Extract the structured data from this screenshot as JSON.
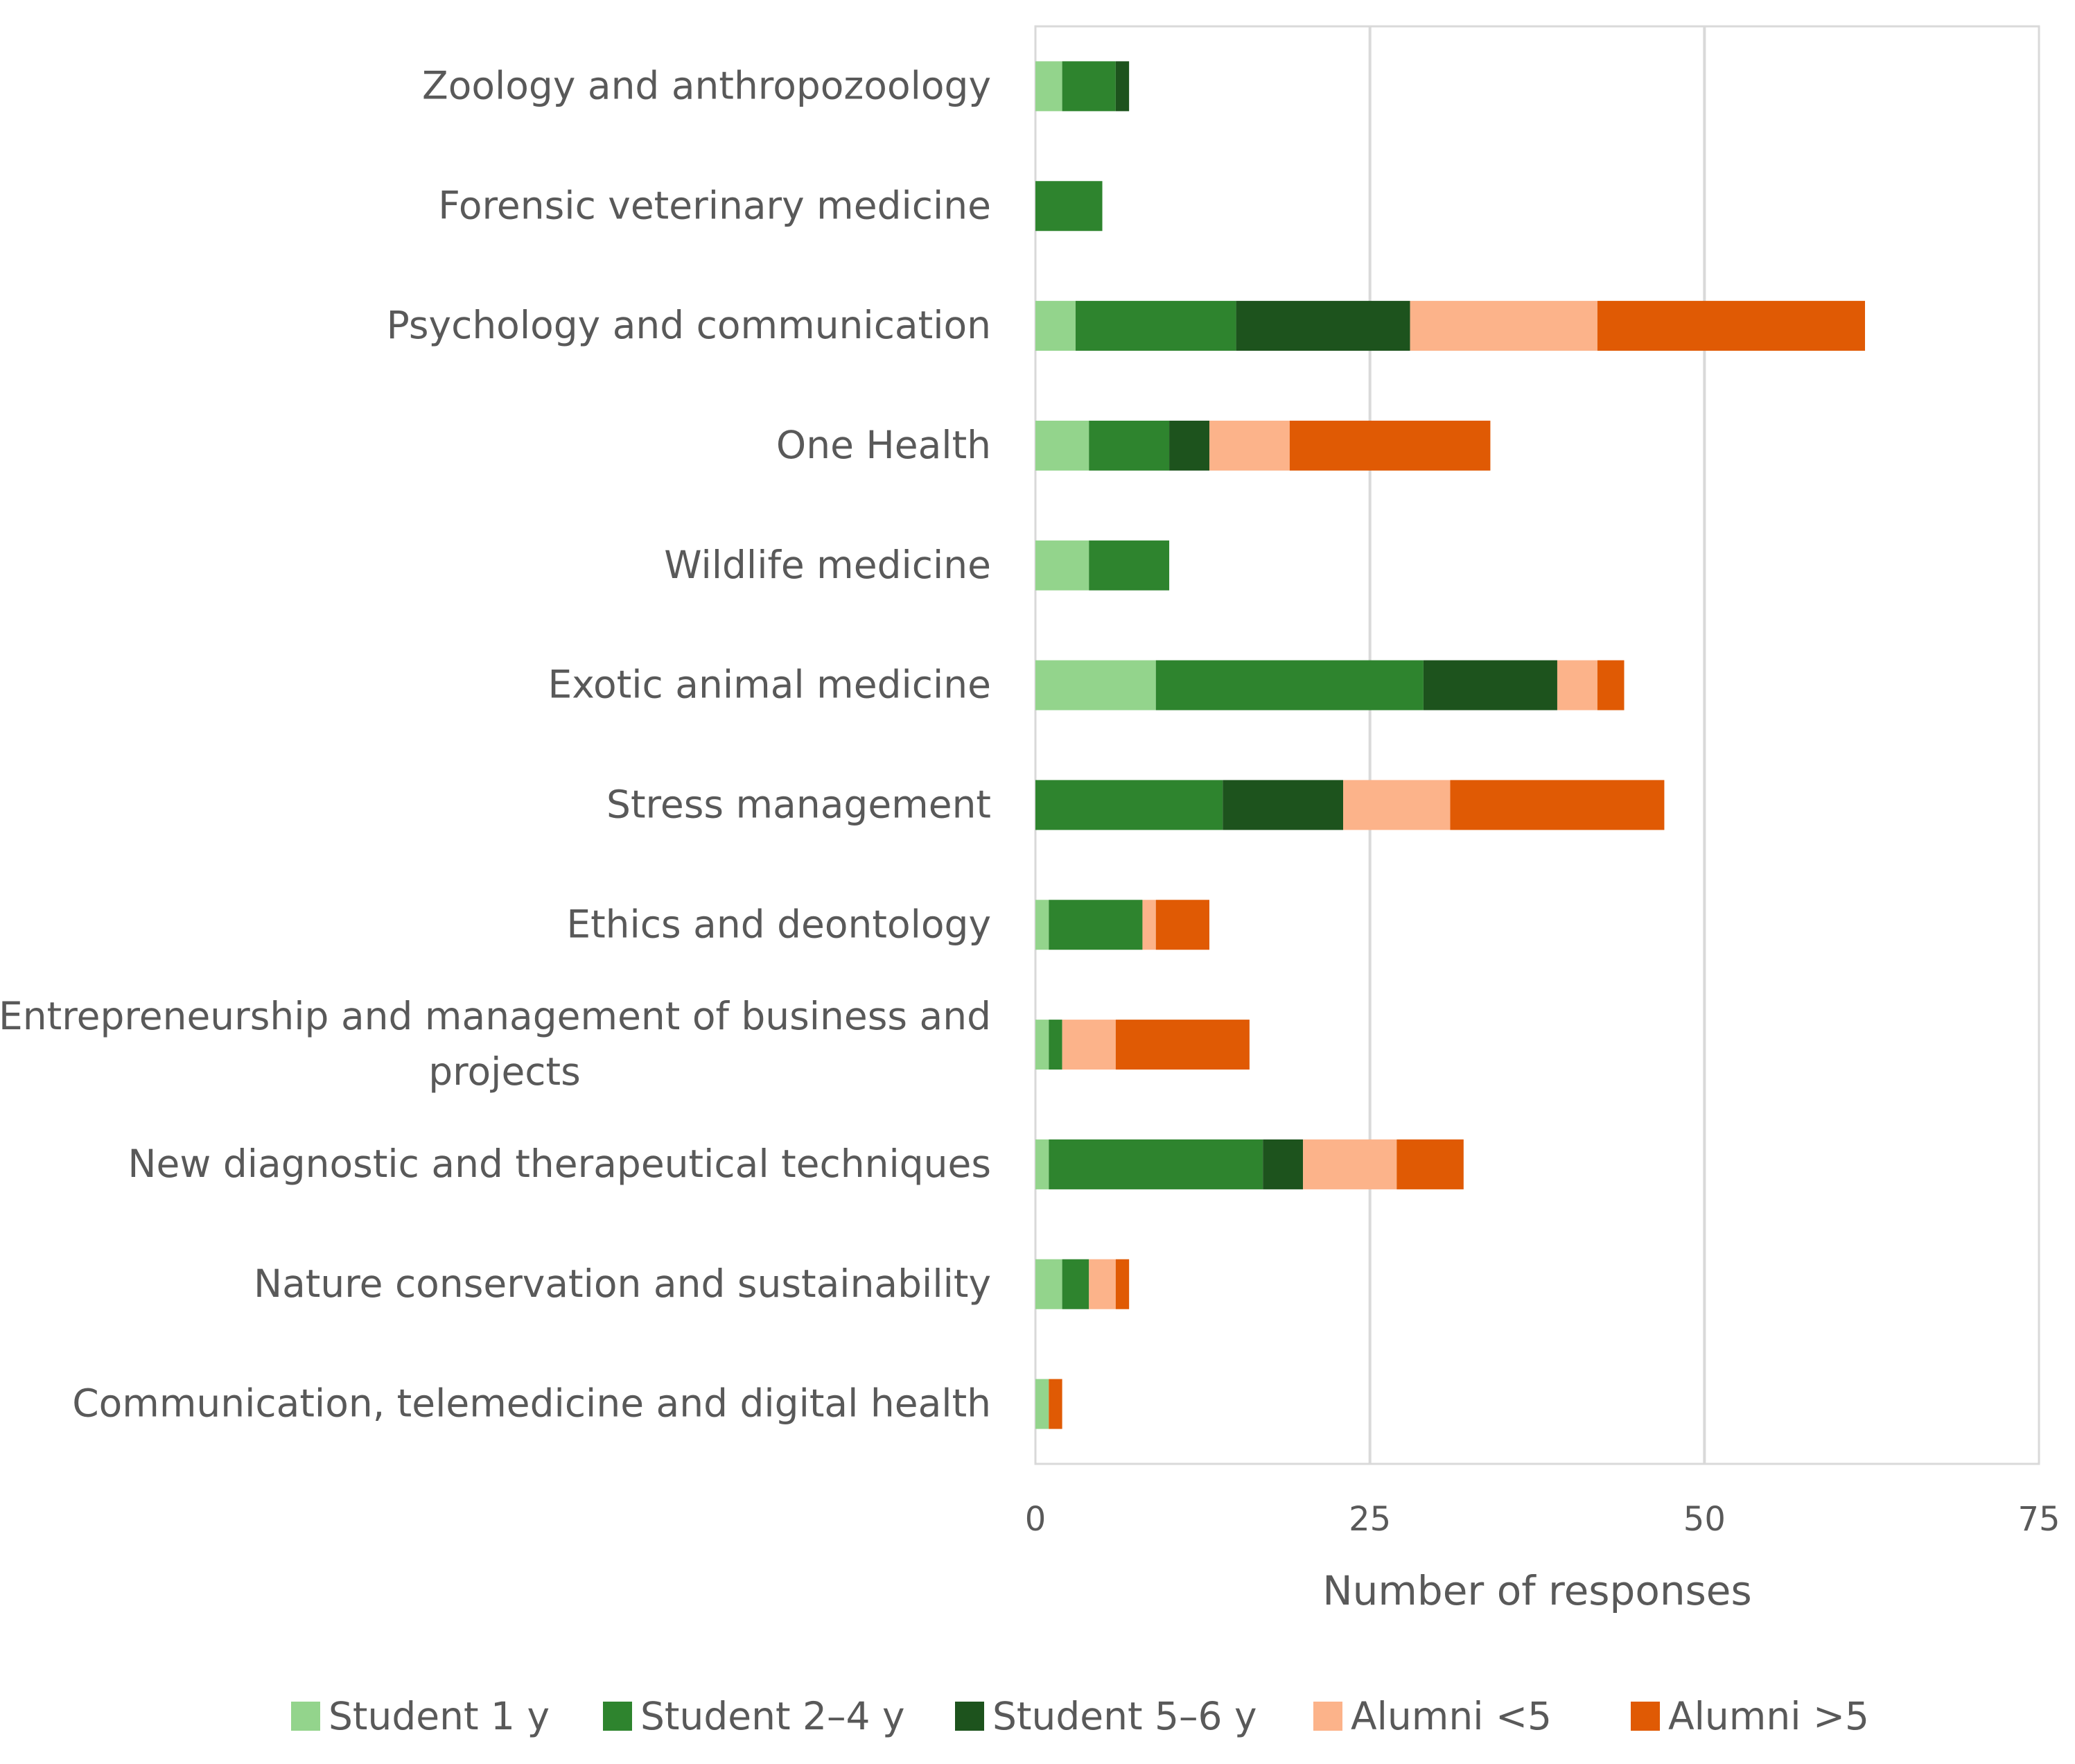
{
  "chart_data": {
    "type": "bar",
    "orientation": "horizontal",
    "stacked": true,
    "title": "",
    "xlabel": "Number of responses",
    "ylabel": "",
    "xlim": [
      0,
      75
    ],
    "xticks": [
      0,
      25,
      50,
      75
    ],
    "grid": true,
    "legend_position": "bottom",
    "categories": [
      [
        "Zoology and anthropozoology"
      ],
      [
        "Forensic veterinary medicine"
      ],
      [
        "Psychology and communication"
      ],
      [
        "One Health"
      ],
      [
        "Wildlife medicine"
      ],
      [
        "Exotic animal medicine"
      ],
      [
        "Stress management"
      ],
      [
        "Ethics and deontology"
      ],
      [
        "Entrepreneurship and management of business and",
        "projects"
      ],
      [
        "New diagnostic and therapeutical techniques"
      ],
      [
        "Nature conservation and sustainability"
      ],
      [
        "Communication, telemedicine and digital health"
      ]
    ],
    "series": [
      {
        "name": "Student 1 y",
        "color": "#93d48c",
        "values": [
          2,
          0,
          3,
          4,
          4,
          9,
          0,
          1,
          1,
          1,
          2,
          1
        ]
      },
      {
        "name": "Student 2–4 y",
        "color": "#2e842e",
        "values": [
          4,
          5,
          12,
          6,
          6,
          20,
          14,
          7,
          1,
          16,
          2,
          0
        ]
      },
      {
        "name": "Student 5–6 y",
        "color": "#1d531d",
        "values": [
          1,
          0,
          13,
          3,
          0,
          10,
          9,
          0,
          0,
          3,
          0,
          0
        ]
      },
      {
        "name": "Alumni <5",
        "color": "#fcb38a",
        "values": [
          0,
          0,
          14,
          6,
          0,
          3,
          8,
          1,
          4,
          7,
          2,
          0
        ]
      },
      {
        "name": "Alumni >5",
        "color": "#e05a04",
        "values": [
          0,
          0,
          20,
          15,
          0,
          2,
          16,
          4,
          10,
          5,
          1,
          1
        ]
      }
    ]
  }
}
